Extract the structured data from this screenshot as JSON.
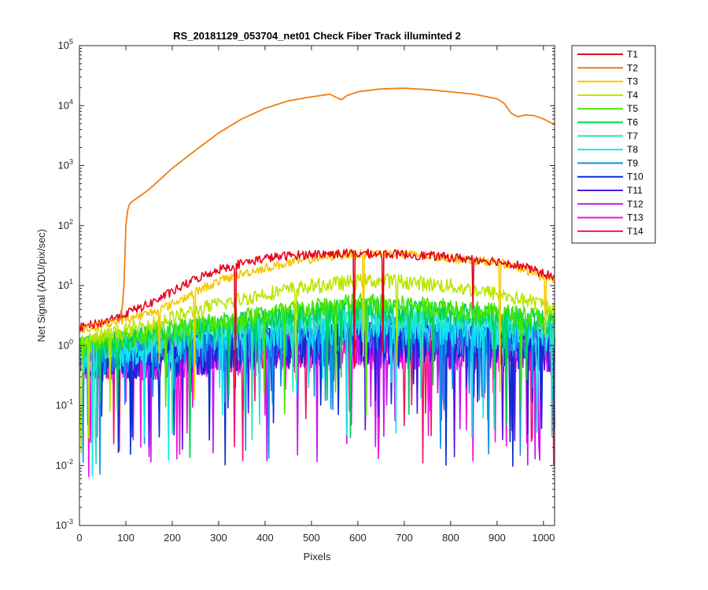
{
  "chart_data": {
    "type": "line",
    "title": "RS_20181129_053704_net01   Check Fiber      Track illuminted 2",
    "xlabel": "Pixels",
    "ylabel": "Net Signal (ADU/pix/sec)",
    "xlim": [
      0,
      1024
    ],
    "ylim": [
      0.001,
      100000
    ],
    "yscale": "log",
    "grid": false,
    "legend_placement": "outside-right",
    "xticks": [
      0,
      100,
      200,
      300,
      400,
      500,
      600,
      700,
      800,
      900,
      1000
    ],
    "yticks": [
      {
        "value": 0.001,
        "base": "10",
        "exp": "-3"
      },
      {
        "value": 0.01,
        "base": "10",
        "exp": "-2"
      },
      {
        "value": 0.1,
        "base": "10",
        "exp": "-1"
      },
      {
        "value": 1,
        "base": "10",
        "exp": "0"
      },
      {
        "value": 10,
        "base": "10",
        "exp": "1"
      },
      {
        "value": 100,
        "base": "10",
        "exp": "2"
      },
      {
        "value": 1000,
        "base": "10",
        "exp": "3"
      },
      {
        "value": 10000,
        "base": "10",
        "exp": "4"
      },
      {
        "value": 100000,
        "base": "10",
        "exp": "5"
      }
    ],
    "series": [
      {
        "name": "T1",
        "color": "#e6001a",
        "x": [
          0,
          50,
          100,
          150,
          200,
          250,
          300,
          350,
          400,
          450,
          500,
          550,
          600,
          650,
          700,
          750,
          800,
          850,
          900,
          950,
          1000,
          1024
        ],
        "y": [
          2.0,
          2.5,
          3.5,
          5.0,
          8.0,
          13,
          19,
          24,
          29,
          32,
          34,
          34.5,
          35,
          34.5,
          33.5,
          32,
          30,
          28,
          26,
          22,
          16,
          14
        ],
        "noise": 0.15
      },
      {
        "name": "T2",
        "color": "#f07d14",
        "x": [
          0,
          50,
          90,
          96,
          100,
          105,
          110,
          150,
          200,
          250,
          300,
          350,
          400,
          450,
          500,
          540,
          555,
          565,
          575,
          600,
          650,
          700,
          750,
          800,
          850,
          900,
          915,
          930,
          945,
          960,
          980,
          1000,
          1024
        ],
        "y": [
          2.0,
          2.5,
          2.8,
          10,
          100,
          210,
          240,
          400,
          900,
          1800,
          3500,
          6000,
          9000,
          12000,
          14000,
          15500,
          13500,
          12500,
          14500,
          17000,
          19000,
          19500,
          18500,
          17000,
          15500,
          13000,
          11000,
          7500,
          6500,
          7000,
          6800,
          6000,
          4800
        ],
        "noise": 0.0
      },
      {
        "name": "T3",
        "color": "#f5c800",
        "x": [
          0,
          50,
          100,
          150,
          200,
          250,
          300,
          350,
          400,
          450,
          500,
          550,
          600,
          650,
          700,
          750,
          800,
          850,
          900,
          950,
          1000,
          1024
        ],
        "y": [
          1.8,
          2.2,
          2.8,
          3.5,
          5.0,
          8.0,
          12,
          16,
          20,
          24,
          28,
          32,
          34,
          35,
          34,
          32,
          29,
          27,
          25,
          20,
          14,
          12
        ],
        "noise": 0.15
      },
      {
        "name": "T4",
        "color": "#b8e600",
        "x": [
          0,
          100,
          200,
          300,
          400,
          500,
          600,
          650,
          700,
          800,
          900,
          1000,
          1024
        ],
        "y": [
          1.2,
          1.8,
          3.0,
          5.0,
          7.5,
          10,
          12,
          12.5,
          12,
          10,
          7.5,
          5.0,
          4.5
        ],
        "noise": 0.25
      },
      {
        "name": "T5",
        "color": "#48e600",
        "x": [
          0,
          200,
          400,
          600,
          800,
          1000,
          1024
        ],
        "y": [
          1.0,
          2.0,
          3.5,
          5.5,
          4.5,
          3.0,
          2.8
        ],
        "noise": 0.35
      },
      {
        "name": "T6",
        "color": "#00d24e",
        "x": [
          0,
          200,
          400,
          600,
          800,
          1000,
          1024
        ],
        "y": [
          1.0,
          1.8,
          3.0,
          4.5,
          3.8,
          2.8,
          2.6
        ],
        "noise": 0.45
      },
      {
        "name": "T7",
        "color": "#28e6b4",
        "x": [
          0,
          200,
          400,
          600,
          800,
          1000,
          1024
        ],
        "y": [
          1.0,
          1.6,
          2.6,
          3.6,
          3.2,
          2.4,
          2.2
        ],
        "noise": 0.55
      },
      {
        "name": "T8",
        "color": "#14e6f0",
        "x": [
          0,
          200,
          400,
          600,
          800,
          1000,
          1024
        ],
        "y": [
          0.9,
          1.4,
          2.2,
          3.0,
          2.6,
          2.0,
          1.9
        ],
        "noise": 0.8
      },
      {
        "name": "T9",
        "color": "#0f91eb",
        "x": [
          0,
          200,
          400,
          600,
          800,
          1000,
          1024
        ],
        "y": [
          0.9,
          1.2,
          1.8,
          2.4,
          2.2,
          1.8,
          1.7
        ],
        "noise": 0.9
      },
      {
        "name": "T10",
        "color": "#0a2dd2",
        "x": [
          0,
          200,
          400,
          600,
          800,
          1000,
          1024
        ],
        "y": [
          0.8,
          1.0,
          1.4,
          1.8,
          1.6,
          1.4,
          1.3
        ],
        "noise": 1.0
      },
      {
        "name": "T11",
        "color": "#5014e6",
        "x": [
          0,
          200,
          400,
          600,
          800,
          1000,
          1024
        ],
        "y": [
          0.8,
          1.0,
          1.3,
          1.6,
          1.5,
          1.3,
          1.2
        ],
        "noise": 1.0
      },
      {
        "name": "T12",
        "color": "#c814f0",
        "x": [
          0,
          200,
          400,
          600,
          800,
          1000,
          1024
        ],
        "y": [
          0.8,
          1.0,
          1.2,
          1.5,
          1.4,
          1.2,
          1.1
        ],
        "noise": 1.0
      },
      {
        "name": "T13",
        "color": "#f014dc",
        "x": [
          0,
          200,
          400,
          600,
          800,
          1000,
          1024
        ],
        "y": [
          0.8,
          1.0,
          1.2,
          1.4,
          1.3,
          1.1,
          1.0
        ],
        "noise": 1.0
      },
      {
        "name": "T14",
        "color": "#f0146e",
        "x": [
          0,
          200,
          400,
          600,
          800,
          1000,
          1024
        ],
        "y": [
          0.8,
          1.0,
          1.2,
          1.4,
          1.3,
          1.1,
          1.0
        ],
        "noise": 0.9
      }
    ]
  }
}
